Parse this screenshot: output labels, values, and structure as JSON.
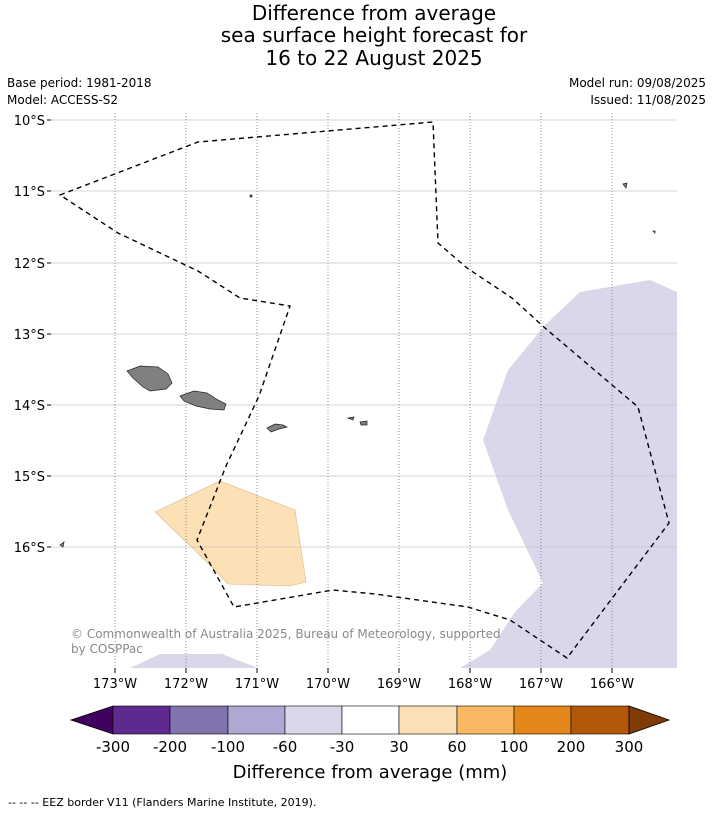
{
  "title": {
    "line1": "Difference from average",
    "line2": "sea surface height forecast for",
    "line3": "16 to 22 August 2025"
  },
  "meta": {
    "base_period": "Base period: 1981-2018",
    "model": "Model: ACCESS-S2",
    "model_run": "Model run: 09/08/2025",
    "issued": "Issued: 11/08/2025"
  },
  "map": {
    "lat_ticks": [
      "10°S",
      "11°S",
      "12°S",
      "13°S",
      "14°S",
      "15°S",
      "16°S"
    ],
    "lon_ticks": [
      "173°W",
      "172°W",
      "171°W",
      "170°W",
      "169°W",
      "168°W",
      "167°W",
      "166°W"
    ],
    "copyright_line1": "© Commonwealth of Australia 2025, Bureau of Meteorology, supported",
    "copyright_line2": "by COSPPac",
    "colors": {
      "land": "#808080",
      "positive_30_60": "#fde0b6",
      "negative_60_30": "#d8d8ea",
      "eez_border": "#000000"
    }
  },
  "colorbar": {
    "tick_labels": [
      "-300",
      "-200",
      "-100",
      "-60",
      "-30",
      "30",
      "60",
      "100",
      "200",
      "300"
    ],
    "colors": [
      "#3f0060",
      "#5e2a90",
      "#8073b0",
      "#b0a8d4",
      "#d8d8ea",
      "#ffffff",
      "#fde0b6",
      "#fbb862",
      "#e4861a",
      "#b35708",
      "#7f3c09"
    ],
    "label": "Difference from average (mm)"
  },
  "footer": "--  --  -- EEZ border V11 (Flanders Marine Institute, 2019)."
}
